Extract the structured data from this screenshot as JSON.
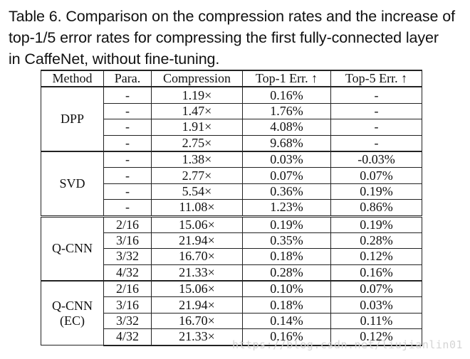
{
  "caption": {
    "line1": "Table 6. Comparison on the compression rates and the increase of",
    "line2": "top-1/5 error rates for compressing the first fully-connected layer",
    "line3": "in CaffeNet, without fine-tuning."
  },
  "table": {
    "headers": {
      "method": "Method",
      "para": "Para.",
      "compression": "Compression",
      "top1": "Top-1 Err. ↑",
      "top5": "Top-5 Err. ↑"
    },
    "groups": [
      {
        "method_line1": "DPP",
        "method_line2": "",
        "rows": [
          {
            "para": "-",
            "compression": "1.19×",
            "top1": "0.16%",
            "top5": "-"
          },
          {
            "para": "-",
            "compression": "1.47×",
            "top1": "1.76%",
            "top5": "-"
          },
          {
            "para": "-",
            "compression": "1.91×",
            "top1": "4.08%",
            "top5": "-"
          },
          {
            "para": "-",
            "compression": "2.75×",
            "top1": "9.68%",
            "top5": "-"
          }
        ]
      },
      {
        "method_line1": "SVD",
        "method_line2": "",
        "rows": [
          {
            "para": "-",
            "compression": "1.38×",
            "top1": "0.03%",
            "top5": "-0.03%"
          },
          {
            "para": "-",
            "compression": "2.77×",
            "top1": "0.07%",
            "top5": "0.07%"
          },
          {
            "para": "-",
            "compression": "5.54×",
            "top1": "0.36%",
            "top5": "0.19%"
          },
          {
            "para": "-",
            "compression": "11.08×",
            "top1": "1.23%",
            "top5": "0.86%"
          }
        ]
      },
      {
        "method_line1": "Q-CNN",
        "method_line2": "",
        "rows": [
          {
            "para": "2/16",
            "compression": "15.06×",
            "top1": "0.19%",
            "top5": "0.19%"
          },
          {
            "para": "3/16",
            "compression": "21.94×",
            "top1": "0.35%",
            "top5": "0.28%"
          },
          {
            "para": "3/32",
            "compression": "16.70×",
            "top1": "0.18%",
            "top5": "0.12%"
          },
          {
            "para": "4/32",
            "compression": "21.33×",
            "top1": "0.28%",
            "top5": "0.16%"
          }
        ]
      },
      {
        "method_line1": "Q-CNN",
        "method_line2": "(EC)",
        "rows": [
          {
            "para": "2/16",
            "compression": "15.06×",
            "top1": "0.10%",
            "top5": "0.07%"
          },
          {
            "para": "3/16",
            "compression": "21.94×",
            "top1": "0.18%",
            "top5": "0.03%"
          },
          {
            "para": "3/32",
            "compression": "16.70×",
            "top1": "0.14%",
            "top5": "0.11%"
          },
          {
            "para": "4/32",
            "compression": "21.33×",
            "top1": "0.16%",
            "top5": "0.12%"
          }
        ]
      }
    ]
  },
  "watermark": "https://blog.csdn.net/liujianlin01"
}
